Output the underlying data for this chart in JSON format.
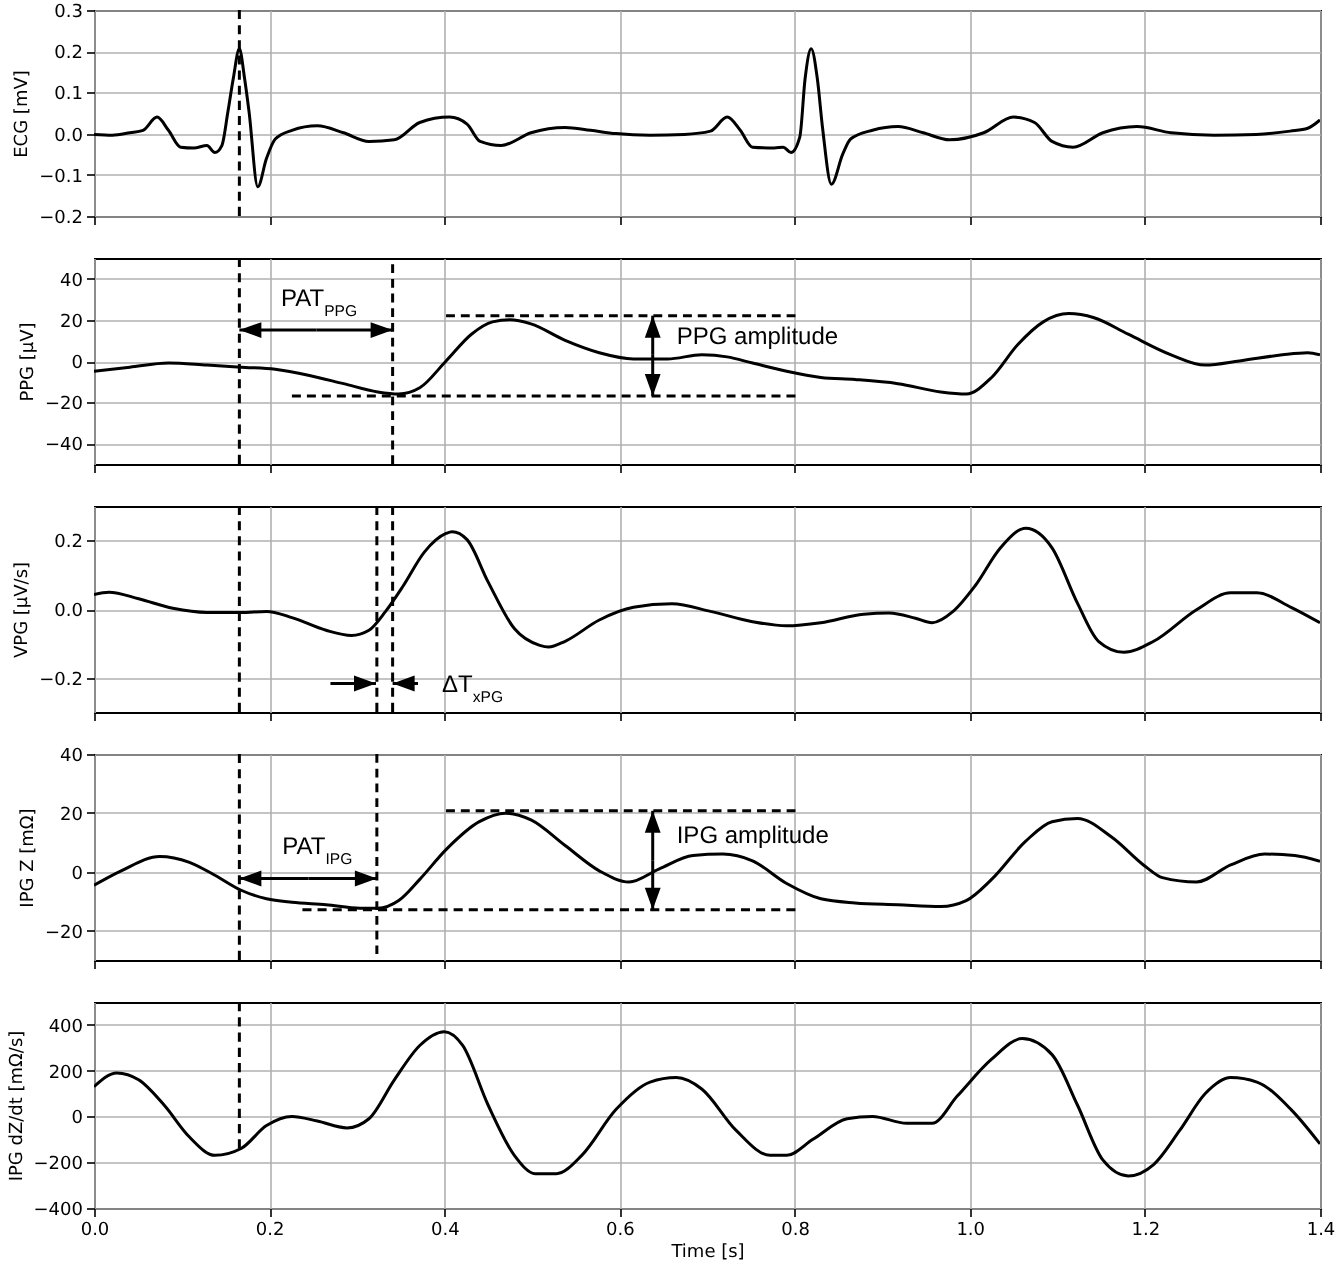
{
  "chart_data": [
    {
      "type": "line",
      "ylabel": "ECG [mV]",
      "xlim": [
        0,
        1.4
      ],
      "xticks": [
        0,
        0.2,
        0.4,
        0.6,
        0.8,
        1,
        1.2,
        1.4
      ],
      "ylim": [
        -0.2,
        0.3
      ],
      "yticks": [
        -0.2,
        -0.1,
        {
          "value": 0,
          "label": "0.0"
        },
        0.1,
        0.2,
        0.3
      ],
      "grid": true,
      "tick_labels": "y",
      "line_style": "solid",
      "series": [
        {
          "color": "#000000",
          "x": [
            0,
            0.021,
            0.041,
            0.056,
            0.072,
            0.085,
            0.099,
            0.114,
            0.129,
            0.138,
            0.146,
            0.153,
            0.159,
            0.166,
            0.172,
            0.177,
            0.187,
            0.197,
            0.207,
            0.226,
            0.255,
            0.285,
            0.314,
            0.343,
            0.372,
            0.406,
            0.426,
            0.441,
            0.465,
            0.499,
            0.538,
            0.567,
            0.596,
            0.635,
            0.674,
            0.704,
            0.723,
            0.738,
            0.752,
            0.777,
            0.787,
            0.796,
            0.806,
            0.812,
            0.819,
            0.826,
            0.832,
            0.842,
            0.855,
            0.864,
            0.889,
            0.918,
            0.947,
            0.977,
            1.016,
            1.05,
            1.074,
            1.094,
            1.118,
            1.152,
            1.191,
            1.23,
            1.279,
            1.327,
            1.366,
            1.386,
            1.4
          ],
          "values": [
            -0.002,
            -0.004,
            0.002,
            0.008,
            0.04,
            0.008,
            -0.033,
            -0.035,
            -0.029,
            -0.046,
            -0.029,
            0.054,
            0.133,
            0.206,
            0.133,
            0.054,
            -0.129,
            -0.06,
            -0.013,
            0.008,
            0.019,
            0.002,
            -0.019,
            -0.015,
            0.027,
            0.04,
            0.023,
            -0.019,
            -0.029,
            0.002,
            0.015,
            0.008,
            0,
            -0.004,
            -0.002,
            0.006,
            0.04,
            0.008,
            -0.033,
            -0.035,
            -0.033,
            -0.046,
            -0.008,
            0.133,
            0.206,
            0.133,
            0.013,
            -0.123,
            -0.05,
            -0.013,
            0.008,
            0.017,
            0.002,
            -0.015,
            0.002,
            0.04,
            0.027,
            -0.019,
            -0.033,
            0.002,
            0.017,
            0.002,
            -0.004,
            -0.002,
            0.006,
            0.013,
            0.033
          ]
        },
        {
          "color": "#000000",
          "x": [
            0.166,
            0.166
          ],
          "values": [
            0.3,
            -0.2
          ],
          "line_style": "dashed"
        }
      ]
    },
    {
      "type": "line",
      "ylabel": "PPG [μV]",
      "xlim": [
        0,
        1.4
      ],
      "xticks": [
        0,
        0.2,
        0.4,
        0.6,
        0.8,
        1,
        1.2,
        1.4
      ],
      "ylim": [
        -50,
        50
      ],
      "yticks": [
        -40,
        -20,
        0,
        20,
        40
      ],
      "grid": true,
      "tick_labels": "y",
      "line_style": "solid",
      "series": [
        {
          "color": "#000000",
          "x": [
            0,
            0.041,
            0.085,
            0.129,
            0.168,
            0.207,
            0.246,
            0.285,
            0.324,
            0.348,
            0.372,
            0.402,
            0.431,
            0.455,
            0.475,
            0.499,
            0.538,
            0.577,
            0.616,
            0.655,
            0.694,
            0.723,
            0.752,
            0.791,
            0.83,
            0.869,
            0.918,
            0.967,
            0.996,
            1.025,
            1.055,
            1.084,
            1.113,
            1.142,
            1.181,
            1.23,
            1.269,
            1.308,
            1.357,
            1.386,
            1.4
          ],
          "values": [
            -5,
            -3,
            -1,
            -2,
            -3,
            -4,
            -7,
            -11,
            -15,
            -16,
            -13,
            0,
            13,
            19,
            20,
            18,
            10,
            4,
            1,
            1,
            3,
            2,
            -1,
            -5,
            -8,
            -9,
            -11,
            -15,
            -16,
            -8,
            8,
            19,
            23,
            21,
            13,
            3,
            -2,
            0,
            3,
            4,
            3
          ]
        },
        {
          "color": "#000000",
          "x": [
            0.166,
            0.166
          ],
          "values": [
            50,
            -50
          ],
          "line_style": "dashed"
        },
        {
          "color": "#000000",
          "x": [
            0.341,
            0.341
          ],
          "values": [
            47,
            -50
          ],
          "line_style": "dashed"
        },
        {
          "color": "#000000",
          "x": [
            0.402,
            0.801
          ],
          "values": [
            22,
            22
          ],
          "line_style": "dashed"
        },
        {
          "color": "#000000",
          "x": [
            0.226,
            0.801
          ],
          "values": [
            -17,
            -17
          ],
          "line_style": "dashed"
        },
        {
          "color": "#000000",
          "x": [
            0.254,
            0.166
          ],
          "values": [
            15,
            15
          ]
        },
        {
          "color": "#000000",
          "x": [
            0.254,
            0.341
          ],
          "values": [
            15,
            15
          ]
        },
        {
          "color": "#000000",
          "x": [
            0.638,
            0.638
          ],
          "values": [
            3,
            22
          ]
        },
        {
          "color": "#000000",
          "x": [
            0.638,
            0.638
          ],
          "values": [
            3,
            -17
          ]
        }
      ],
      "annotations": [
        {
          "text": "PAT$_{PPG}$",
          "x": 0.257,
          "y": 15
        },
        {
          "text": "PPG amplitude",
          "x": 0.638,
          "y": 12
        }
      ]
    },
    {
      "type": "line",
      "ylabel": "VPG [μV/s]",
      "xlim": [
        0,
        1.4
      ],
      "xticks": [
        0,
        0.2,
        0.4,
        0.6,
        0.8,
        1,
        1.2,
        1.4
      ],
      "ylim": [
        -0.3,
        0.3
      ],
      "yticks": [
        -0.2,
        {
          "value": 0,
          "label": "0.0"
        },
        0.2
      ],
      "grid": true,
      "tick_labels": "y",
      "line_style": "solid",
      "series": [
        {
          "color": "#000000",
          "x": [
            0,
            0.017,
            0.051,
            0.09,
            0.129,
            0.168,
            0.197,
            0.226,
            0.265,
            0.294,
            0.314,
            0.333,
            0.353,
            0.377,
            0.402,
            0.409,
            0.426,
            0.45,
            0.48,
            0.509,
            0.519,
            0.538,
            0.577,
            0.616,
            0.66,
            0.704,
            0.752,
            0.791,
            0.83,
            0.879,
            0.908,
            0.938,
            0.957,
            0.981,
            1.006,
            1.035,
            1.064,
            1.094,
            1.123,
            1.147,
            1.176,
            1.21,
            1.259,
            1.298,
            1.328,
            1.367,
            1.4
          ],
          "values": [
            0.042,
            0.049,
            0.03,
            0.002,
            -0.01,
            -0.01,
            -0.007,
            -0.025,
            -0.062,
            -0.077,
            -0.062,
            -0.007,
            0.067,
            0.165,
            0.22,
            0.225,
            0.202,
            0.079,
            -0.057,
            -0.106,
            -0.111,
            -0.094,
            -0.032,
            0.005,
            0.015,
            -0.007,
            -0.037,
            -0.049,
            -0.04,
            -0.015,
            -0.012,
            -0.027,
            -0.04,
            -0.007,
            0.067,
            0.178,
            0.235,
            0.178,
            0.017,
            -0.094,
            -0.126,
            -0.094,
            -0.002,
            0.047,
            0.047,
            0.005,
            -0.04
          ]
        },
        {
          "color": "#000000",
          "x": [
            0.166,
            0.166
          ],
          "values": [
            0.3,
            -0.3
          ],
          "line_style": "dashed"
        },
        {
          "color": "#000000",
          "x": [
            0.341,
            0.341
          ],
          "values": [
            0.3,
            -0.3
          ],
          "line_style": "dashed"
        },
        {
          "color": "#000000",
          "x": [
            0.323,
            0.323
          ],
          "values": [
            0.3,
            -0.3
          ],
          "line_style": "dashed"
        },
        {
          "color": "#000000",
          "x": [
            0.27,
            0.322
          ],
          "values": [
            -0.217,
            -0.217
          ]
        },
        {
          "color": "#000000",
          "x": [
            0.37,
            0.341
          ],
          "values": [
            -0.217,
            -0.217
          ]
        }
      ],
      "annotations": [
        {
          "text": "ΔT$_{xPG}$",
          "x": 0.37,
          "y": -0.217
        }
      ]
    },
    {
      "type": "line",
      "ylabel": "IPG Z [mΩ]",
      "xlim": [
        0,
        1.4
      ],
      "xticks": [
        0,
        0.2,
        0.4,
        0.6,
        0.8,
        1,
        1.2,
        1.4
      ],
      "ylim": [
        -30,
        40
      ],
      "yticks": [
        -20,
        0,
        20,
        40
      ],
      "grid": true,
      "tick_labels": "y",
      "line_style": "solid",
      "series": [
        {
          "color": "#000000",
          "x": [
            0,
            0.031,
            0.075,
            0.109,
            0.138,
            0.168,
            0.197,
            0.226,
            0.265,
            0.304,
            0.324,
            0.348,
            0.372,
            0.402,
            0.44,
            0.47,
            0.499,
            0.538,
            0.577,
            0.611,
            0.645,
            0.684,
            0.718,
            0.752,
            0.791,
            0.83,
            0.869,
            0.918,
            0.967,
            0.996,
            1.025,
            1.064,
            1.094,
            1.123,
            1.162,
            1.201,
            1.22,
            1.259,
            1.298,
            1.337,
            1.371,
            1.4
          ],
          "values": [
            -4.6,
            0.3,
            5.2,
            3.2,
            -1.2,
            -6.3,
            -9.2,
            -10.4,
            -11.2,
            -12.4,
            -12.4,
            -9.8,
            -2.6,
            7.5,
            17,
            19.9,
            17.6,
            8.9,
            0.3,
            -3.5,
            0.9,
            5.5,
            6,
            3.7,
            -4,
            -9.2,
            -10.6,
            -11.2,
            -11.8,
            -9.8,
            -2.6,
            10.4,
            17,
            18.1,
            11.8,
            1.7,
            -2,
            -3.5,
            2.3,
            6,
            5.5,
            3.5
          ]
        },
        {
          "color": "#000000",
          "x": [
            0.166,
            0.166
          ],
          "values": [
            40,
            -30
          ],
          "line_style": "dashed"
        },
        {
          "color": "#000000",
          "x": [
            0.323,
            0.323
          ],
          "values": [
            40,
            -28
          ],
          "line_style": "dashed"
        },
        {
          "color": "#000000",
          "x": [
            0.402,
            0.801
          ],
          "values": [
            20.7,
            20.7
          ],
          "line_style": "dashed"
        },
        {
          "color": "#000000",
          "x": [
            0.238,
            0.801
          ],
          "values": [
            -12.9,
            -12.9
          ],
          "line_style": "dashed"
        },
        {
          "color": "#000000",
          "x": [
            0.245,
            0.166
          ],
          "values": [
            -2.3,
            -2.3
          ]
        },
        {
          "color": "#000000",
          "x": [
            0.245,
            0.323
          ],
          "values": [
            -2.3,
            -2.3
          ]
        },
        {
          "color": "#000000",
          "x": [
            0.638,
            0.638
          ],
          "values": [
            3.9,
            20.7
          ]
        },
        {
          "color": "#000000",
          "x": [
            0.638,
            0.638
          ],
          "values": [
            3.9,
            -12.9
          ]
        }
      ],
      "annotations": [
        {
          "text": "PAT$_{IPG}$",
          "x": 0.255,
          "y": -2.3
        },
        {
          "text": "IPG amplitude",
          "x": 0.638,
          "y": 12.4
        }
      ]
    },
    {
      "type": "line",
      "ylabel": "IPG dZ/dt [mΩ/s]",
      "xlabel": "Time [s]",
      "xlim": [
        0,
        1.4
      ],
      "xticks": [
        {
          "value": 0,
          "label": "0.0"
        },
        0.2,
        0.4,
        0.6,
        0.8,
        {
          "value": 1,
          "label": "1.0"
        },
        1.2,
        1.4
      ],
      "ylim": [
        -400,
        500
      ],
      "yticks": [
        -400,
        -200,
        0,
        200,
        400
      ],
      "grid": true,
      "line_style": "solid",
      "series": [
        {
          "color": "#000000",
          "x": [
            0,
            0.026,
            0.051,
            0.08,
            0.109,
            0.138,
            0.168,
            0.197,
            0.226,
            0.255,
            0.289,
            0.314,
            0.343,
            0.372,
            0.4,
            0.421,
            0.45,
            0.48,
            0.504,
            0.528,
            0.557,
            0.596,
            0.635,
            0.665,
            0.694,
            0.733,
            0.772,
            0.791,
            0.821,
            0.86,
            0.889,
            0.928,
            0.957,
            0.986,
            1.025,
            1.06,
            1.094,
            1.123,
            1.152,
            1.181,
            1.21,
            1.24,
            1.269,
            1.298,
            1.328,
            1.367,
            1.4
          ],
          "values": [
            130,
            190,
            160,
            50,
            -90,
            -170,
            -140,
            -40,
            0,
            -20,
            -50,
            -10,
            160,
            310,
            370,
            310,
            50,
            -170,
            -250,
            -250,
            -170,
            30,
            150,
            170,
            120,
            -60,
            -170,
            -170,
            -100,
            -10,
            0,
            -30,
            -30,
            90,
            250,
            340,
            270,
            50,
            -190,
            -260,
            -210,
            -60,
            100,
            170,
            150,
            30,
            -120
          ]
        },
        {
          "color": "#000000",
          "x": [
            0.166,
            0.166
          ],
          "values": [
            500,
            -140
          ],
          "line_style": "dashed"
        }
      ]
    }
  ]
}
